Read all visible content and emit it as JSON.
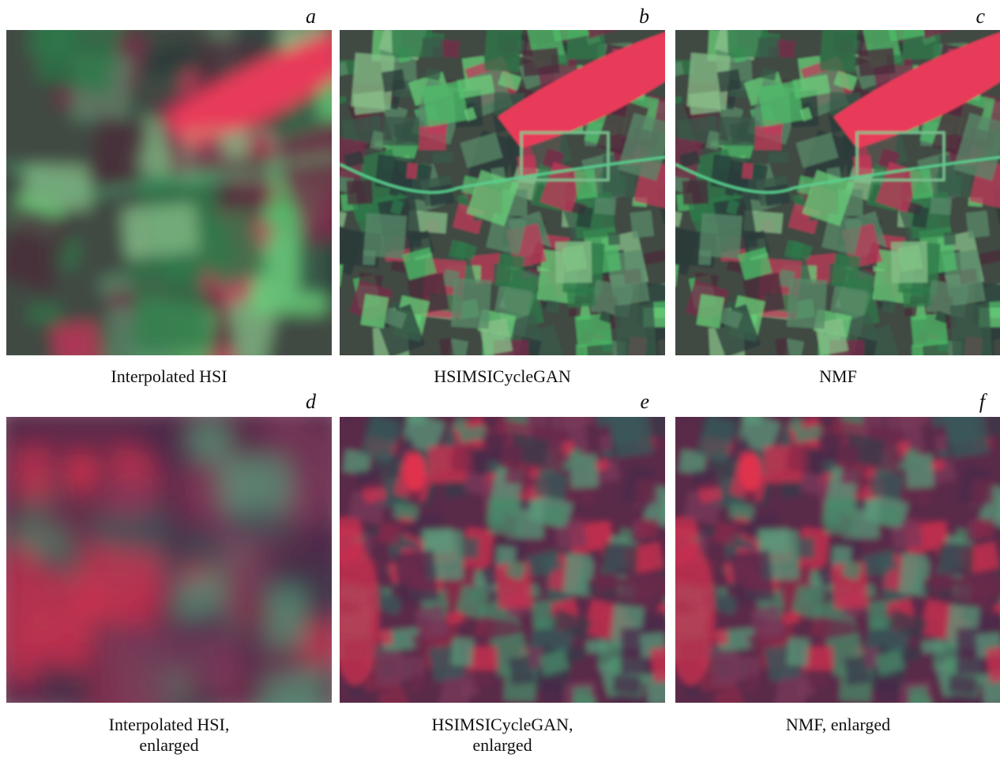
{
  "panels": [
    {
      "letter": "a",
      "caption": [
        "Interpolated HSI"
      ]
    },
    {
      "letter": "b",
      "caption": [
        "HSIMSICycleGAN"
      ]
    },
    {
      "letter": "c",
      "caption": [
        "NMF"
      ]
    },
    {
      "letter": "d",
      "caption": [
        "Interpolated HSI,",
        "enlarged"
      ]
    },
    {
      "letter": "e",
      "caption": [
        "HSIMSICycleGAN,",
        "enlarged"
      ]
    },
    {
      "letter": "f",
      "caption": [
        "NMF, enlarged"
      ]
    }
  ]
}
